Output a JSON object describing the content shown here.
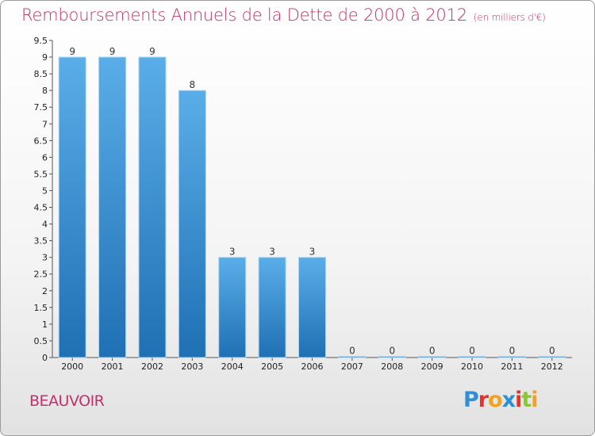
{
  "header": {
    "title": "Remboursements Annuels de la Dette de 2000 à 2012",
    "subtitle": "(en milliers d'€)"
  },
  "footer": {
    "commune": "BEAUVOIR",
    "logo_text": "Proxiti",
    "logo_colors": [
      "#2e8fd4",
      "#e8312a",
      "#f2a21c",
      "#2e8fd4",
      "#e8312a",
      "#8bc43f",
      "#f2a21c"
    ]
  },
  "chart_data": {
    "type": "bar",
    "title": "Remboursements Annuels de la Dette de 2000 à 2012",
    "subtitle": "(en milliers d'€)",
    "categories": [
      "2000",
      "2001",
      "2002",
      "2003",
      "2004",
      "2005",
      "2006",
      "2007",
      "2008",
      "2009",
      "2010",
      "2011",
      "2012"
    ],
    "values": [
      9,
      9,
      9,
      8,
      3,
      3,
      3,
      0,
      0,
      0,
      0,
      0,
      0
    ],
    "data_labels": [
      "9",
      "9",
      "9",
      "8",
      "3",
      "3",
      "3",
      "0",
      "0",
      "0",
      "0",
      "0",
      "0"
    ],
    "ylim": [
      0,
      9.5
    ],
    "yticks": [
      "0",
      "0.5",
      "1",
      "1.5",
      "2",
      "2.5",
      "3",
      "3.5",
      "4",
      "4.5",
      "5",
      "5.5",
      "6",
      "6.5",
      "7",
      "7.5",
      "8",
      "8.5",
      "9",
      "9.5"
    ],
    "xlabel": "",
    "ylabel": "",
    "grid": false,
    "bar_color": "#3d92d6"
  }
}
